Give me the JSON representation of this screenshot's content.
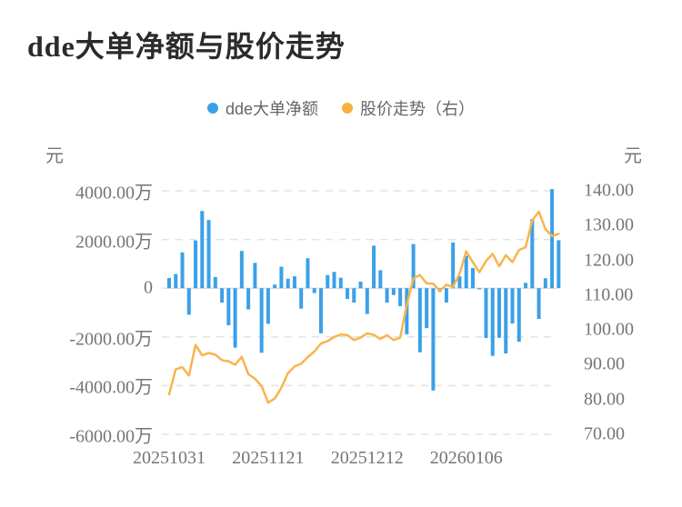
{
  "page": {
    "title": "dde大单净额与股价走势"
  },
  "legend": [
    {
      "label": "dde大单净额",
      "color": "#3BA0E8"
    },
    {
      "label": "股价走势（右）",
      "color": "#F6B13C"
    }
  ],
  "colors": {
    "bar": "#3BA0E8",
    "line": "#F8B44C",
    "grid": "#E3E3E3",
    "zero_line": "#E0E0E0",
    "text_gray": "#757575",
    "title": "#2B2B2B"
  },
  "chart_data": {
    "type": "combo",
    "title": "dde大单净额与股价走势",
    "x_axis": {
      "labels": [
        "20251031",
        "20251121",
        "20251212",
        "20260106"
      ],
      "label_indices": [
        0,
        15,
        30,
        45
      ],
      "num_points": 60
    },
    "left_axis": {
      "unit": "元",
      "min": -6000,
      "max": 4000,
      "ticks": [
        {
          "value": 4000,
          "label": "4000.00万"
        },
        {
          "value": 2000,
          "label": "2000.00万"
        },
        {
          "value": 0,
          "label": "0"
        },
        {
          "value": -2000,
          "label": "-2000.00万"
        },
        {
          "value": -4000,
          "label": "-4000.00万"
        },
        {
          "value": -6000,
          "label": "-6000.00万"
        }
      ]
    },
    "right_axis": {
      "unit": "元",
      "min": 70,
      "max": 140,
      "ticks": [
        {
          "value": 140,
          "label": "140.00"
        },
        {
          "value": 130,
          "label": "130.00"
        },
        {
          "value": 120,
          "label": "120.00"
        },
        {
          "value": 110,
          "label": "110.00"
        },
        {
          "value": 100,
          "label": "100.00"
        },
        {
          "value": 90,
          "label": "90.00"
        },
        {
          "value": 80,
          "label": "80.00"
        },
        {
          "value": 70,
          "label": "70.00"
        }
      ]
    },
    "series": [
      {
        "name": "dde大单净额",
        "type": "bar",
        "axis": "left",
        "unit": "万元",
        "color": "#3BA0E8",
        "values": [
          420,
          580,
          1470,
          -1090,
          1960,
          3170,
          2800,
          460,
          -590,
          -1520,
          -2440,
          1530,
          -870,
          1040,
          -2650,
          -1460,
          150,
          880,
          390,
          490,
          -840,
          1230,
          -200,
          -1850,
          540,
          670,
          430,
          -440,
          -590,
          270,
          -1060,
          1750,
          740,
          -590,
          -280,
          -740,
          -1890,
          1810,
          -2630,
          -1640,
          -4200,
          -150,
          -590,
          1880,
          490,
          1330,
          830,
          -50,
          -2050,
          -2780,
          -2040,
          -2680,
          -1450,
          -2200,
          220,
          2840,
          -1260,
          410,
          4070,
          1970
        ]
      },
      {
        "name": "股价走势（右）",
        "type": "line",
        "axis": "right",
        "unit": "元",
        "color": "#F8B44C",
        "values": [
          81.5,
          88.7,
          89.3,
          86.9,
          95.7,
          92.7,
          93.4,
          92.9,
          91.3,
          91.0,
          90.0,
          92.3,
          87.3,
          86.0,
          83.9,
          79.1,
          80.3,
          83.4,
          87.6,
          89.5,
          90.3,
          92.2,
          93.8,
          96.1,
          96.8,
          98.0,
          98.7,
          98.5,
          97.1,
          97.8,
          99.0,
          98.6,
          97.4,
          98.5,
          97.1,
          97.8,
          107.3,
          114.8,
          115.8,
          113.4,
          113.3,
          111.2,
          113.0,
          112.4,
          116.2,
          122.6,
          119.5,
          116.6,
          119.8,
          121.9,
          118.3,
          121.5,
          119.5,
          123.0,
          123.8,
          131.5,
          134.0,
          129.0,
          127.0,
          127.6
        ]
      }
    ]
  }
}
